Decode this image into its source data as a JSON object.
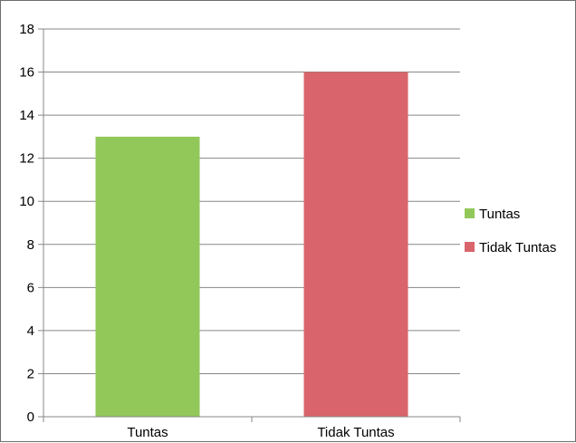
{
  "chart_data": {
    "type": "bar",
    "title": "",
    "xlabel": "",
    "ylabel": "",
    "categories": [
      "Tuntas",
      "Tidak Tuntas"
    ],
    "series": [
      {
        "name": "Tuntas",
        "category": "Tuntas",
        "value": 13,
        "color": "#92c85a"
      },
      {
        "name": "Tidak Tuntas",
        "category": "Tidak Tuntas",
        "value": 16,
        "color": "#d9646b"
      }
    ],
    "ylim": [
      0,
      18
    ],
    "yticks": [
      "0",
      "2",
      "4",
      "6",
      "8",
      "10",
      "12",
      "14",
      "16",
      "18"
    ],
    "grid": true,
    "legend_position": "right"
  }
}
